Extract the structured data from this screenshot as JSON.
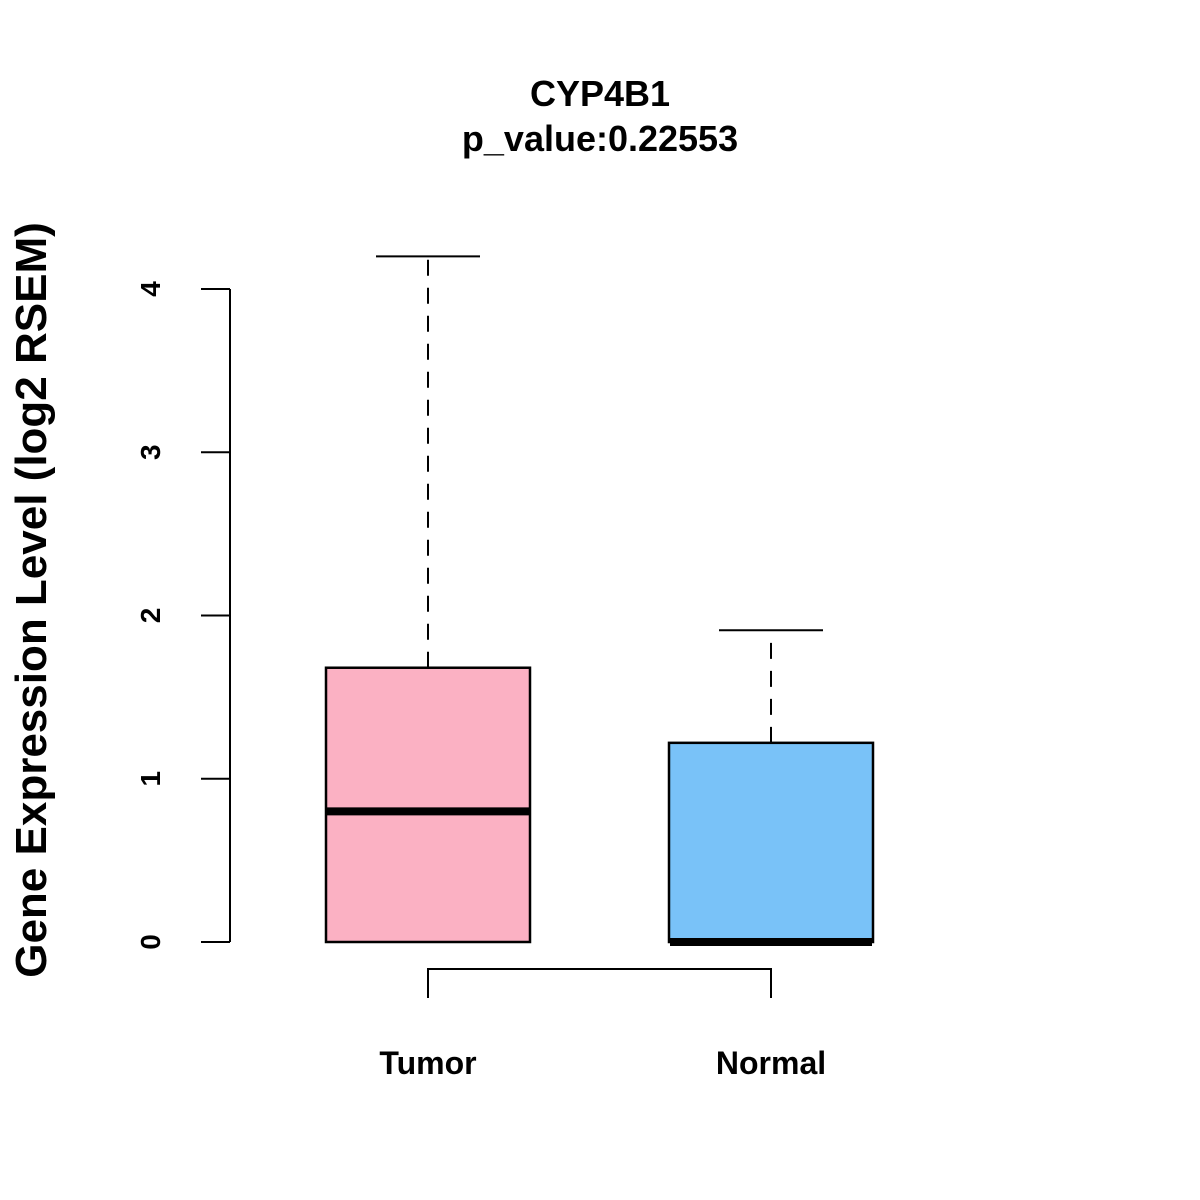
{
  "chart_data": {
    "type": "boxplot",
    "title": "CYP4B1",
    "subtitle": "p_value:0.22553",
    "xlabel": "",
    "ylabel": "Gene Expression Level (log2 RSEM)",
    "ylim": [
      0,
      4.2
    ],
    "yticks": [
      0,
      1,
      2,
      3,
      4
    ],
    "ytick_labels": [
      "0",
      "1",
      "2",
      "3",
      "4"
    ],
    "categories": [
      "Tumor",
      "Normal"
    ],
    "boxes": [
      {
        "name": "Tumor",
        "min": 0,
        "q1": 0,
        "median": 0.8,
        "q3": 1.68,
        "max": 4.2,
        "color": "#FBB1C3"
      },
      {
        "name": "Normal",
        "min": 0,
        "q1": 0,
        "median": 0.0,
        "q3": 1.22,
        "max": 1.91,
        "color": "#79C2F8"
      }
    ],
    "comparison_bracket": [
      "Tumor",
      "Normal"
    ]
  }
}
